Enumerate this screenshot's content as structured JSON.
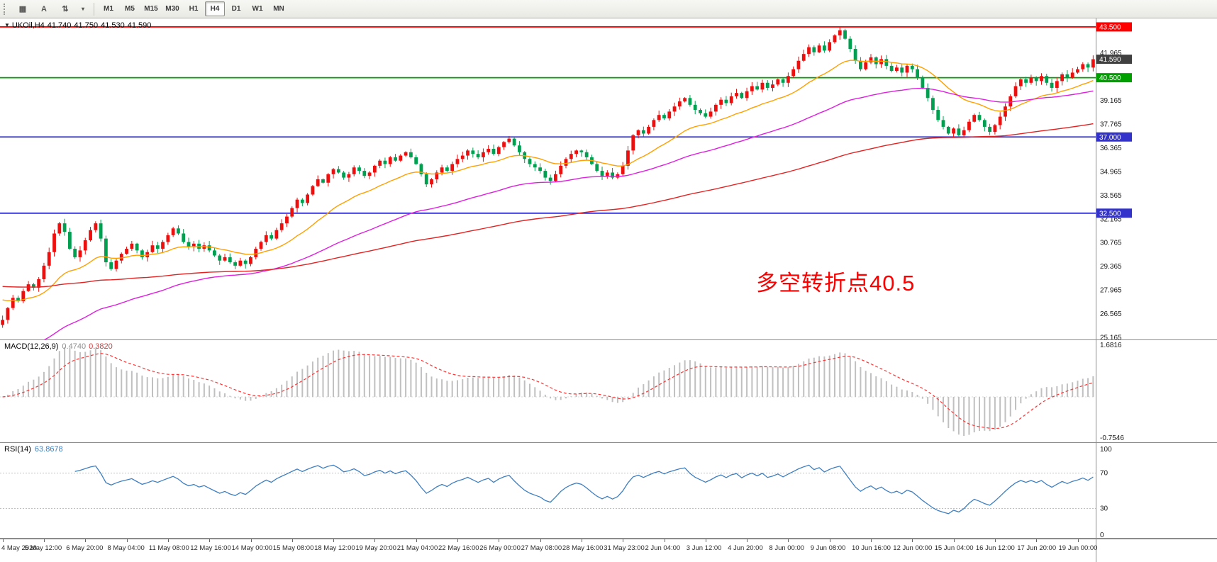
{
  "toolbar": {
    "icon_buttons": [
      {
        "name": "chart-window-icon",
        "glyph": "▦"
      },
      {
        "name": "text-annotation-icon",
        "glyph": "A"
      },
      {
        "name": "indicator-tool-icon",
        "glyph": "⇅"
      },
      {
        "name": "tools-dropdown-caret-icon",
        "glyph": "▾"
      }
    ],
    "timeframes": [
      "M1",
      "M5",
      "M15",
      "M30",
      "H1",
      "H4",
      "D1",
      "W1",
      "MN"
    ],
    "active_timeframe": "H4"
  },
  "quote": {
    "symbol_tf": "UKOil,H4",
    "open": "41.740",
    "high": "41.750",
    "low": "41.530",
    "close": "41.590"
  },
  "annotation": {
    "text": "多空转折点40.5",
    "color": "#ff0000"
  },
  "levels": [
    {
      "value": 43.5,
      "label": "43.500",
      "color": "#ff0000"
    },
    {
      "value": 40.5,
      "label": "40.500",
      "color": "#00a000"
    },
    {
      "value": 37.0,
      "label": "37.000",
      "color": "#3333cc"
    },
    {
      "value": 32.5,
      "label": "32.500",
      "color": "#3333cc"
    }
  ],
  "price_badge": {
    "value": 41.59,
    "label": "41.590",
    "color": "#404040"
  },
  "y_ticks": [
    "41.965",
    "39.165",
    "37.765",
    "36.365",
    "34.965",
    "33.565",
    "32.165",
    "30.765",
    "29.365",
    "27.965",
    "26.565",
    "25.165"
  ],
  "x_labels": [
    "4 May 2020",
    "5 May 12:00",
    "6 May 20:00",
    "8 May 04:00",
    "11 May 08:00",
    "12 May 16:00",
    "14 May 00:00",
    "15 May 08:00",
    "18 May 12:00",
    "19 May 20:00",
    "21 May 04:00",
    "22 May 16:00",
    "26 May 00:00",
    "27 May 08:00",
    "28 May 16:00",
    "31 May 23:00",
    "2 Jun 04:00",
    "3 Jun 12:00",
    "4 Jun 20:00",
    "8 Jun 00:00",
    "9 Jun 08:00",
    "10 Jun 16:00",
    "12 Jun 00:00",
    "15 Jun 04:00",
    "16 Jun 12:00",
    "17 Jun 20:00",
    "19 Jun 00:00"
  ],
  "x_label_every": 8,
  "chart_data": {
    "type": "candlestick",
    "symbol": "UKOil",
    "timeframe": "H4",
    "price_min": 25.0,
    "price_max": 44.0,
    "up_color": "#ed0e0e",
    "down_color": "#00A050",
    "closes": [
      26.2,
      26.9,
      27.5,
      27.3,
      27.9,
      28.3,
      28.1,
      28.6,
      29.4,
      30.2,
      31.3,
      31.9,
      31.4,
      30.4,
      29.9,
      30.3,
      30.9,
      31.5,
      31.9,
      31.0,
      29.6,
      29.2,
      29.7,
      30.1,
      30.4,
      30.7,
      30.3,
      29.9,
      30.2,
      30.6,
      30.4,
      30.8,
      31.2,
      31.6,
      31.3,
      30.8,
      30.5,
      30.7,
      30.4,
      30.6,
      30.3,
      30.0,
      29.7,
      29.9,
      29.6,
      29.4,
      29.7,
      29.5,
      29.9,
      30.4,
      30.8,
      31.2,
      31.0,
      31.5,
      31.9,
      32.3,
      32.8,
      33.3,
      33.1,
      33.6,
      34.1,
      34.5,
      34.3,
      34.8,
      35.1,
      34.9,
      34.6,
      34.8,
      35.2,
      35.0,
      34.7,
      34.9,
      35.3,
      35.6,
      35.4,
      35.8,
      35.6,
      35.9,
      36.1,
      35.8,
      35.4,
      34.8,
      34.2,
      34.5,
      34.9,
      35.2,
      35.0,
      35.4,
      35.7,
      35.9,
      36.2,
      36.0,
      35.8,
      36.1,
      36.3,
      36.0,
      36.4,
      36.7,
      36.9,
      36.5,
      36.1,
      35.7,
      35.4,
      35.2,
      35.0,
      34.6,
      34.4,
      34.8,
      35.3,
      35.7,
      36.0,
      36.2,
      36.1,
      35.8,
      35.4,
      35.0,
      34.7,
      34.9,
      34.6,
      34.8,
      35.3,
      36.2,
      37.1,
      37.4,
      37.2,
      37.6,
      38.0,
      38.3,
      38.1,
      38.5,
      38.8,
      39.1,
      39.3,
      38.9,
      38.6,
      38.4,
      38.2,
      38.5,
      38.9,
      39.2,
      39.0,
      39.4,
      39.6,
      39.3,
      39.7,
      40.0,
      39.8,
      40.2,
      39.9,
      40.1,
      40.4,
      40.2,
      40.6,
      41.0,
      41.5,
      41.9,
      42.3,
      42.0,
      42.4,
      42.1,
      42.6,
      43.0,
      43.3,
      42.8,
      42.2,
      41.5,
      41.0,
      41.4,
      41.7,
      41.3,
      41.6,
      41.2,
      40.9,
      41.1,
      40.8,
      41.2,
      41.0,
      40.5,
      39.9,
      39.3,
      38.6,
      38.0,
      37.6,
      37.2,
      37.5,
      37.1,
      37.4,
      37.9,
      38.3,
      38.0,
      37.6,
      37.3,
      37.7,
      38.2,
      38.8,
      39.4,
      40.0,
      40.4,
      40.2,
      40.5,
      40.3,
      40.6,
      40.2,
      39.9,
      40.3,
      40.7,
      40.5,
      40.8,
      41.0,
      41.3,
      41.1,
      41.59
    ],
    "moving_averages": [
      {
        "name": "ma-fast-orange",
        "period": 20,
        "seed": 27.5,
        "color": "#ffa000"
      },
      {
        "name": "ma-mid-magenta",
        "period": 60,
        "seed": 24.0,
        "color": "#e020e0"
      },
      {
        "name": "ma-slow-red",
        "period": 150,
        "seed": 28.2,
        "color": "#e32222"
      }
    ]
  },
  "macd": {
    "label": "MACD(12,26,9)",
    "main_value": "0.4740",
    "signal_value": "0.3820",
    "fast": 12,
    "slow": 26,
    "signal": 9,
    "axis_max": "1.6816",
    "axis_min": "-0.7546",
    "hist_color": "#c0c0c0",
    "signal_color": "#ff3333"
  },
  "rsi": {
    "label": "RSI(14)",
    "value": "63.8678",
    "period": 14,
    "levels": [
      70,
      30
    ],
    "axis_labels": [
      "100",
      "70",
      "30",
      "0"
    ],
    "color": "#3E7FC1"
  }
}
